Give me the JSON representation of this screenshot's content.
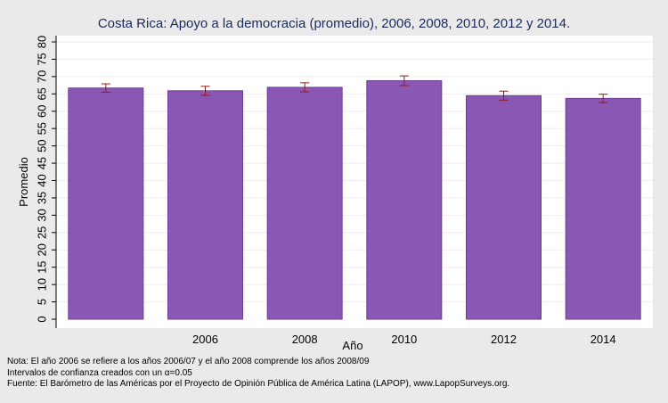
{
  "chart_data": {
    "type": "bar",
    "title": "Costa Rica: Apoyo a la democracia (promedio), 2006, 2008, 2010, 2012 y 2014.",
    "xlabel": "Año",
    "ylabel": "Promedio",
    "categories": [
      "",
      "2006",
      "2008",
      "2010",
      "2012",
      "2014"
    ],
    "values": [
      66.7,
      65.9,
      66.9,
      68.8,
      64.5,
      63.7
    ],
    "ci_low": [
      65.5,
      64.6,
      65.6,
      67.4,
      63.2,
      62.5
    ],
    "ci_high": [
      67.9,
      67.2,
      68.2,
      70.2,
      65.8,
      64.9
    ],
    "ylim": [
      0,
      80
    ],
    "yticks": [
      0,
      5,
      10,
      15,
      20,
      25,
      30,
      35,
      40,
      45,
      50,
      55,
      60,
      65,
      70,
      75,
      80
    ],
    "grid": true,
    "bar_color": "#8b57b4",
    "bar_edge_color": "#6c3d93",
    "errorbar_color": "#8b1c1c",
    "background_color": "#eaeaea",
    "plot_background_color": "#ffffff"
  },
  "notes": {
    "line1": "Nota: El año 2006 se refiere a los años 2006/07 y el año 2008 comprende los años 2008/09",
    "line2": "Intervalos de confianza creados con un α=0.05",
    "line3": "Fuente: El Barómetro de las Américas por el Proyecto de Opinión Pública de América Latina (LAPOP), www.LapopSurveys.org."
  }
}
